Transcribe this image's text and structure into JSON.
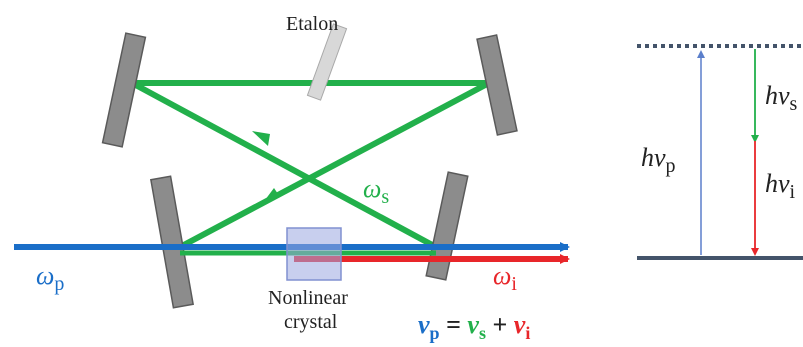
{
  "labels": {
    "etalon": "Etalon",
    "crystal_line1": "Nonlinear",
    "crystal_line2": "crystal",
    "omega": "ω",
    "pump_sub": "p",
    "signal_sub": "s",
    "idler_sub": "i",
    "h": "h",
    "nu": "ν"
  },
  "equation": {
    "nu": "v",
    "p_sub": "p",
    "equals": " = ",
    "s_sub": "s",
    "plus": " + ",
    "i_sub": "i"
  },
  "colors": {
    "pump": "#1a6ec8",
    "signal": "#22b04b",
    "idler": "#e8262a",
    "mirror": "#8c8c8c",
    "crystal": "#9aa8e0",
    "etalon": "#d0d0d0",
    "level": "#44546a",
    "pump_arrow": "#5b7fcb",
    "text": "#222222"
  }
}
